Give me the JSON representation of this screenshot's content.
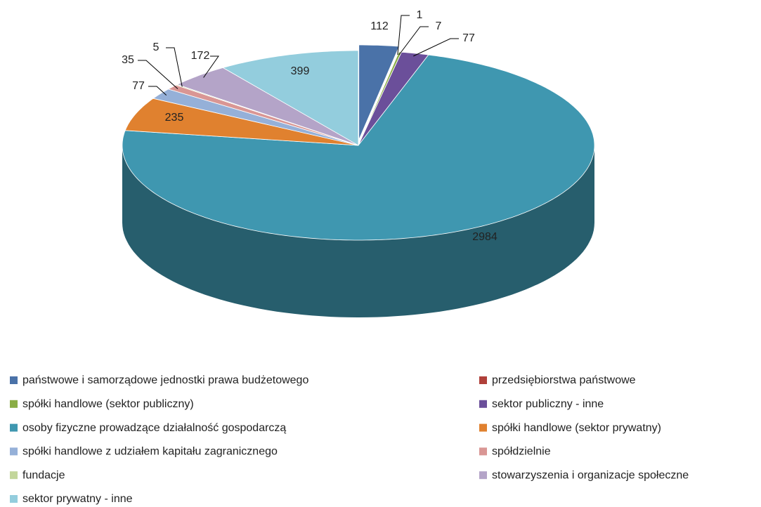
{
  "chart_data": {
    "type": "pie",
    "categories": [
      "państwowe i samorządowe jednostki prawa budżetowego",
      "przedsiębiorstwa państwowe",
      "spółki handlowe (sektor publiczny)",
      "sektor publiczny - inne",
      "osoby fizyczne prowadzące działalność gospodarczą",
      "spółki handlowe (sektor prywatny)",
      "spółki handlowe z udziałem kapitału zagranicznego",
      "spółdzielnie",
      "fundacje",
      "stowarzyszenia i organizacje społeczne",
      "sektor prywatny - inne"
    ],
    "values": [
      112,
      1,
      7,
      77,
      2984,
      235,
      77,
      35,
      5,
      172,
      399
    ],
    "colors": [
      "#4a72a8",
      "#b0403a",
      "#8aad45",
      "#6b4f9a",
      "#3f97b0",
      "#e0812f",
      "#95b0d8",
      "#d99694",
      "#c3d69b",
      "#b4a4c8",
      "#93cddd"
    ],
    "legend": "bottom"
  }
}
